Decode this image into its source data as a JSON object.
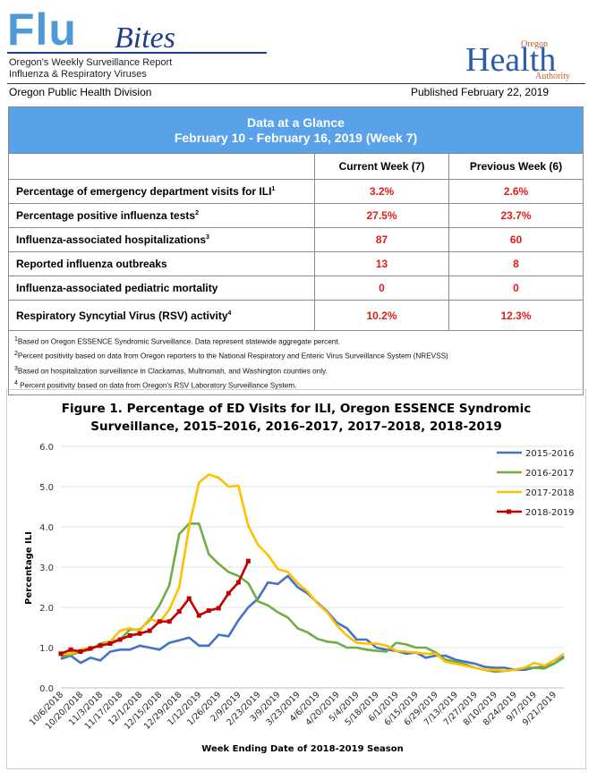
{
  "header": {
    "brand_big": "Flu",
    "brand_script": "Bites",
    "subtitle_1": "Oregon's Weekly Surveillance Report",
    "subtitle_2": "Influenza & Respiratory Viruses",
    "logo_top": "Oregon",
    "logo_main": "Health",
    "logo_bottom": "Authority",
    "division": "Oregon Public Health Division",
    "published": "Published February 22, 2019"
  },
  "glance": {
    "title": "Data at a Glance",
    "period": "February 10 - February 16, 2019 (Week 7)",
    "col_current": "Current Week (7)",
    "col_previous": "Previous Week (6)",
    "rows": [
      {
        "label": "Percentage of emergency department visits for ILI",
        "sup": "1",
        "current": "3.2%",
        "previous": "2.6%"
      },
      {
        "label": "Percentage positive influenza tests",
        "sup": "2",
        "current": "27.5%",
        "previous": "23.7%"
      },
      {
        "label": "Influenza-associated hospitalizations",
        "sup": "3",
        "current": "87",
        "previous": "60"
      },
      {
        "label": "Reported influenza outbreaks",
        "sup": "",
        "current": "13",
        "previous": "8"
      },
      {
        "label": "Influenza-associated pediatric mortality",
        "sup": "",
        "current": "0",
        "previous": "0"
      },
      {
        "label": "Respiratory Syncytial Virus (RSV) activity",
        "sup": "4",
        "current": "10.2%",
        "previous": "12.3%"
      }
    ],
    "footnotes": [
      {
        "n": "1",
        "text": "Based on Oregon ESSENCE Syndromic Surveillance. Data represent statewide aggregate percent."
      },
      {
        "n": "2",
        "text": "Percent positivity based on data from Oregon reporters to the National Respiratory and Enteric Virus Surveillance System (NREVSS)"
      },
      {
        "n": "3",
        "text": "Based on hospitalization surveillance in Clackamas, Multnomah, and Washington counties only."
      },
      {
        "n": "4",
        "text": " Percent positivity based on data from Oregon's RSV Laboratory Surveillance System."
      }
    ]
  },
  "chart_data": {
    "type": "line",
    "title_line1": "Figure 1. Percentage of ED Visits for ILI, Oregon ESSENCE Syndromic",
    "title_line2": "Surveillance, 2015–2016, 2016–2017, 2017–2018, 2018-2019",
    "xlabel": "Week Ending Date of 2018-2019 Season",
    "ylabel": "Percentage ILI",
    "ylim": [
      0,
      6
    ],
    "yticks": [
      "0.0",
      "1.0",
      "2.0",
      "3.0",
      "4.0",
      "5.0",
      "6.0"
    ],
    "xticks": [
      "10/6/2018",
      "10/20/2018",
      "11/3/2018",
      "11/17/2018",
      "12/1/2018",
      "12/15/2018",
      "12/29/2018",
      "1/12/2019",
      "1/26/2019",
      "2/9/2019",
      "2/23/2019",
      "3/9/2019",
      "3/23/2019",
      "4/6/2019",
      "4/20/2019",
      "5/4/2019",
      "5/18/2019",
      "6/1/2019",
      "6/15/2019",
      "6/29/2019",
      "7/13/2019",
      "7/27/2019",
      "8/10/2019",
      "8/24/2019",
      "9/7/2019",
      "9/21/2019"
    ],
    "n_weeks": 52,
    "series": [
      {
        "name": "2015-2016",
        "color": "#4472c4",
        "markers": false,
        "values": [
          0.72,
          0.8,
          0.62,
          0.75,
          0.68,
          0.9,
          0.95,
          0.95,
          1.05,
          1.0,
          0.95,
          1.12,
          1.18,
          1.25,
          1.05,
          1.05,
          1.32,
          1.28,
          1.68,
          2.0,
          2.22,
          2.62,
          2.58,
          2.78,
          2.5,
          2.35,
          2.12,
          1.9,
          1.62,
          1.48,
          1.2,
          1.2,
          1.0,
          0.95,
          0.92,
          0.85,
          0.88,
          0.75,
          0.8,
          0.8,
          0.7,
          0.65,
          0.6,
          0.52,
          0.5,
          0.5,
          0.45,
          0.45,
          0.5,
          0.52,
          0.6,
          0.78
        ]
      },
      {
        "name": "2016-2017",
        "color": "#70ad47",
        "markers": false,
        "values": [
          0.78,
          0.82,
          0.9,
          0.95,
          1.1,
          1.15,
          1.2,
          1.45,
          1.45,
          1.68,
          2.05,
          2.55,
          3.82,
          4.08,
          4.08,
          3.32,
          3.08,
          2.88,
          2.78,
          2.6,
          2.15,
          2.05,
          1.88,
          1.75,
          1.48,
          1.38,
          1.22,
          1.15,
          1.12,
          1.0,
          1.0,
          0.95,
          0.92,
          0.9,
          1.12,
          1.08,
          1.0,
          1.0,
          0.88,
          0.7,
          0.65,
          0.58,
          0.5,
          0.45,
          0.4,
          0.42,
          0.45,
          0.5,
          0.5,
          0.48,
          0.6,
          0.75
        ]
      },
      {
        "name": "2017-2018",
        "color": "#ffc000",
        "markers": false,
        "values": [
          0.85,
          0.85,
          0.95,
          1.0,
          1.05,
          1.15,
          1.42,
          1.48,
          1.42,
          1.72,
          1.62,
          1.95,
          2.5,
          4.0,
          5.1,
          5.3,
          5.22,
          5.0,
          5.02,
          4.02,
          3.55,
          3.3,
          2.95,
          2.88,
          2.6,
          2.4,
          2.1,
          1.88,
          1.55,
          1.3,
          1.12,
          1.1,
          1.1,
          1.05,
          0.92,
          0.9,
          0.88,
          0.85,
          0.85,
          0.65,
          0.6,
          0.55,
          0.5,
          0.45,
          0.45,
          0.42,
          0.45,
          0.5,
          0.62,
          0.55,
          0.68,
          0.85
        ]
      },
      {
        "name": "2018-2019",
        "color": "#c00000",
        "markers": true,
        "values": [
          0.85,
          0.95,
          0.9,
          0.98,
          1.05,
          1.1,
          1.2,
          1.3,
          1.35,
          1.42,
          1.65,
          1.65,
          1.9,
          2.22,
          1.8,
          1.92,
          1.98,
          2.35,
          2.62,
          3.15
        ]
      }
    ]
  }
}
